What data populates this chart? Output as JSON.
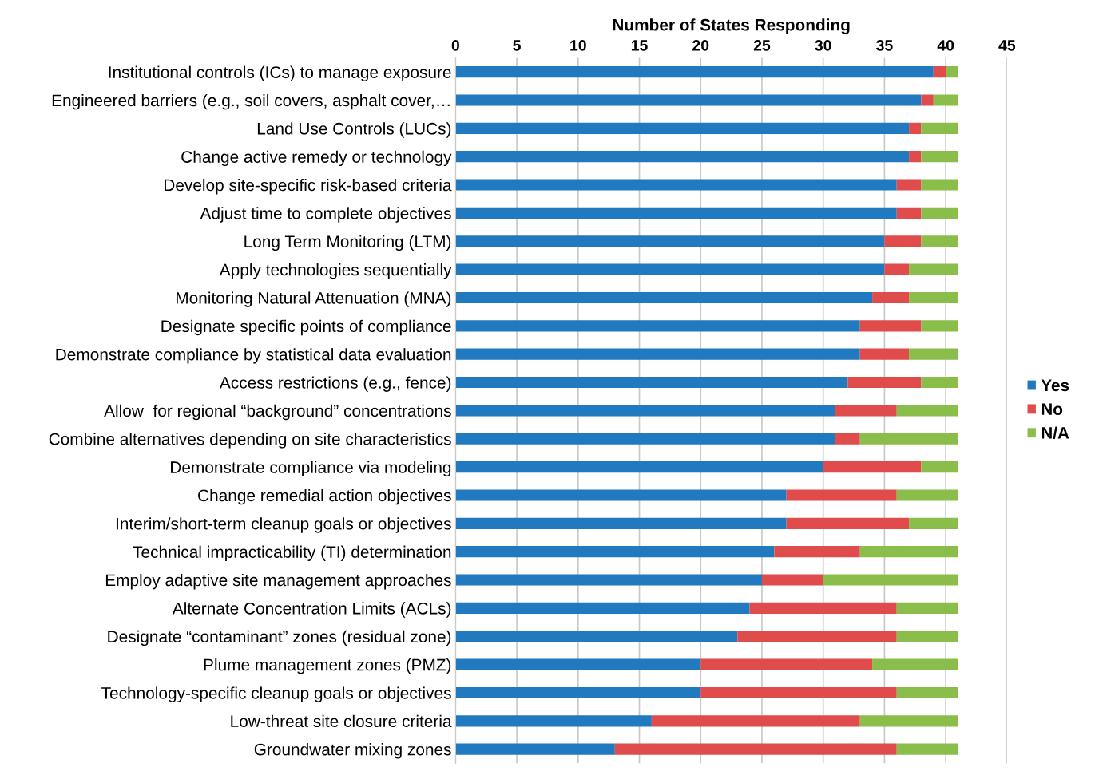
{
  "chart_data": {
    "type": "bar",
    "orientation": "horizontal",
    "stacked": true,
    "xlabel": "Number of States Responding",
    "categories": [
      "Institutional controls (ICs) to manage exposure",
      "Engineered barriers (e.g., soil covers, asphalt cover,…",
      "Land Use Controls (LUCs)",
      "Change active remedy or technology",
      "Develop site-specific risk-based criteria",
      "Adjust time to complete objectives",
      "Long Term Monitoring (LTM)",
      "Apply technologies sequentially",
      "Monitoring Natural Attenuation (MNA)",
      "Designate specific points of compliance",
      "Demonstrate compliance by statistical data evaluation",
      "Access restrictions (e.g., fence)",
      "Allow  for regional “background” concentrations",
      "Combine alternatives depending on site characteristics",
      "Demonstrate compliance via modeling",
      "Change remedial action objectives",
      "Interim/short-term cleanup goals or objectives",
      "Technical impracticability (TI) determination",
      "Employ adaptive site management approaches",
      "Alternate Concentration Limits (ACLs)",
      "Designate “contaminant” zones (residual zone)",
      "Plume management zones (PMZ)",
      "Technology-specific cleanup goals or objectives",
      "Low-threat site closure criteria",
      "Groundwater mixing zones"
    ],
    "series": [
      {
        "name": "Yes",
        "color": "#2179c0",
        "values": [
          39,
          38,
          37,
          37,
          36,
          36,
          35,
          35,
          34,
          33,
          33,
          32,
          31,
          31,
          30,
          27,
          27,
          26,
          25,
          24,
          23,
          20,
          20,
          16,
          13
        ]
      },
      {
        "name": "No",
        "color": "#e04b4b",
        "values": [
          1,
          1,
          1,
          1,
          2,
          2,
          3,
          2,
          3,
          5,
          4,
          6,
          5,
          2,
          8,
          9,
          10,
          7,
          5,
          12,
          13,
          14,
          16,
          17,
          23
        ]
      },
      {
        "name": "N/A",
        "color": "#8bbd4b",
        "values": [
          1,
          2,
          3,
          3,
          3,
          3,
          3,
          4,
          4,
          3,
          4,
          3,
          5,
          8,
          3,
          5,
          4,
          8,
          11,
          5,
          5,
          7,
          5,
          8,
          5
        ]
      }
    ],
    "xlim": [
      0,
      45
    ],
    "xticks": [
      0,
      5,
      10,
      15,
      20,
      25,
      30,
      35,
      40,
      45
    ],
    "grid": "x",
    "legend": "right"
  }
}
